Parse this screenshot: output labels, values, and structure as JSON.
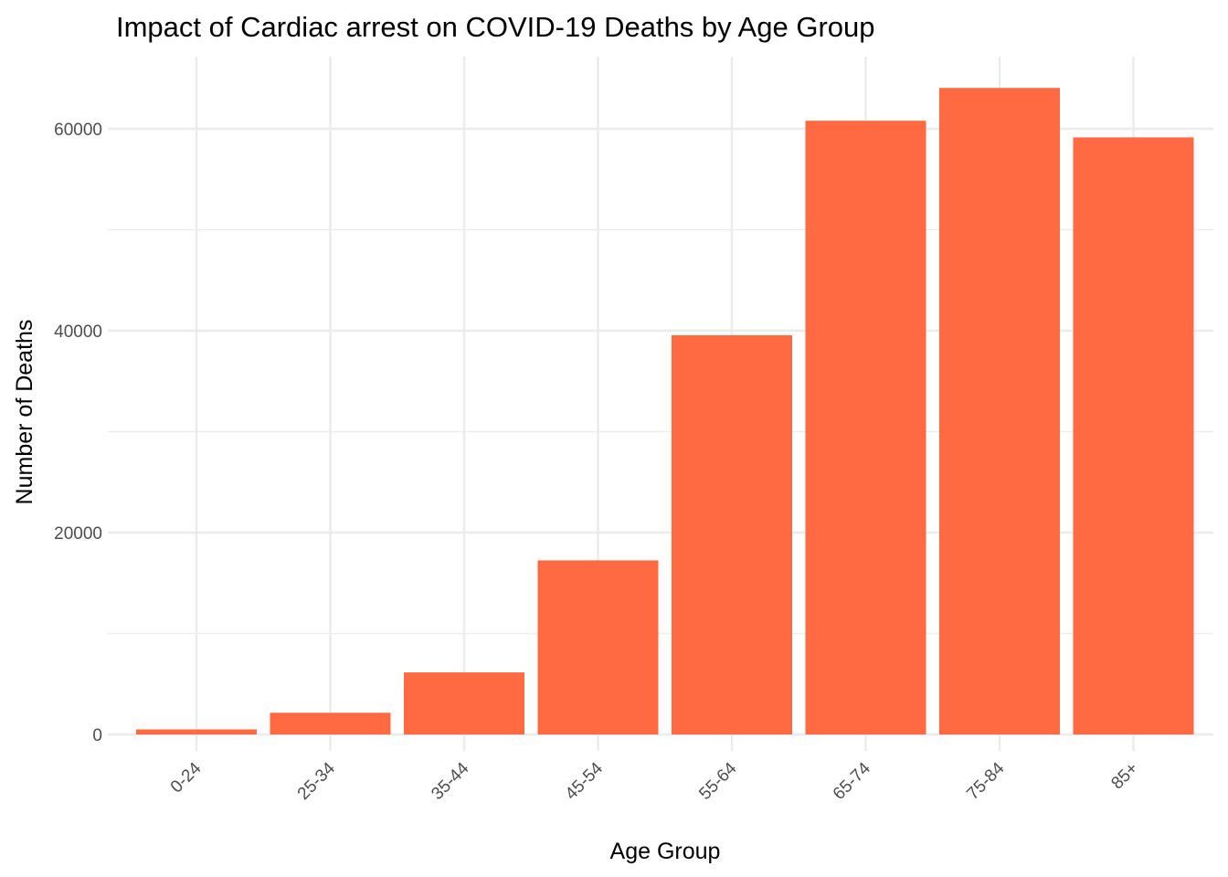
{
  "chart_data": {
    "type": "bar",
    "title": "Impact of Cardiac arrest on COVID-19 Deaths by Age Group",
    "xlabel": "Age Group",
    "ylabel": "Number of Deaths",
    "categories": [
      "0-24",
      "25-34",
      "35-44",
      "45-54",
      "55-64",
      "65-74",
      "75-84",
      "85+"
    ],
    "values": [
      500,
      2150,
      6150,
      17250,
      39550,
      60800,
      64050,
      59150
    ],
    "ylim": [
      0,
      66000
    ],
    "y_ticks": [
      0,
      20000,
      40000,
      60000
    ],
    "y_tick_labels": [
      "0",
      "20000",
      "40000",
      "60000"
    ],
    "grid": true,
    "bar_color": "#FF6A42",
    "grid_color": "#EBEBEB",
    "x_tick_rotation": 45
  }
}
